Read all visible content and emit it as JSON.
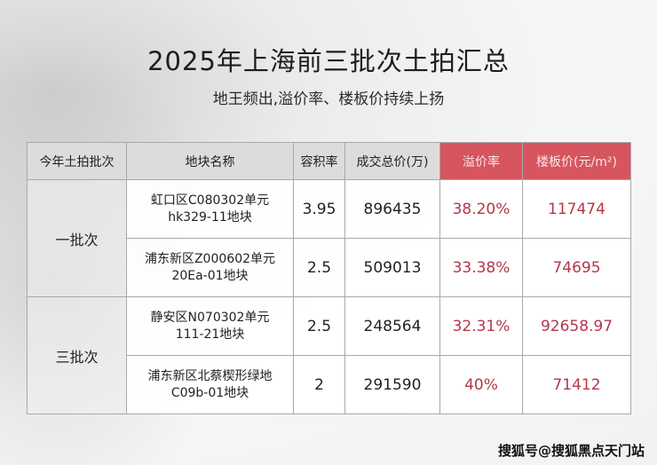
{
  "title": "2025年上海前三批次土拍汇总",
  "subtitle": "地王频出,溢价率、楼板价持续上扬",
  "table": {
    "headers": [
      "今年土拍批次",
      "地块名称",
      "容积率",
      "成交总价(万)",
      "溢价率",
      "楼板价(元/m²)"
    ],
    "groups": [
      {
        "batch": "一批次",
        "rows": [
          {
            "name_line1": "虹口区C080302单元",
            "name_line2": "hk329-11地块",
            "far": "3.95",
            "total": "896435",
            "premium": "38.20%",
            "floor_price": "117474"
          },
          {
            "name_line1": "浦东新区Z000602单元",
            "name_line2": "20Ea-01地块",
            "far": "2.5",
            "total": "509013",
            "premium": "33.38%",
            "floor_price": "74695"
          }
        ]
      },
      {
        "batch": "三批次",
        "rows": [
          {
            "name_line1": "静安区N070302单元",
            "name_line2": "111-21地块",
            "far": "2.5",
            "total": "248564",
            "premium": "32.31%",
            "floor_price": "92658.97"
          },
          {
            "name_line1": "浦东新区北蔡楔形绿地",
            "name_line2": "C09b-01地块",
            "far": "2",
            "total": "291590",
            "premium": "40%",
            "floor_price": "71412"
          }
        ]
      }
    ]
  },
  "watermark": "搜狐号@搜狐黑点天门站",
  "colors": {
    "accent": "#d6555f",
    "value_red": "#b2384a"
  }
}
